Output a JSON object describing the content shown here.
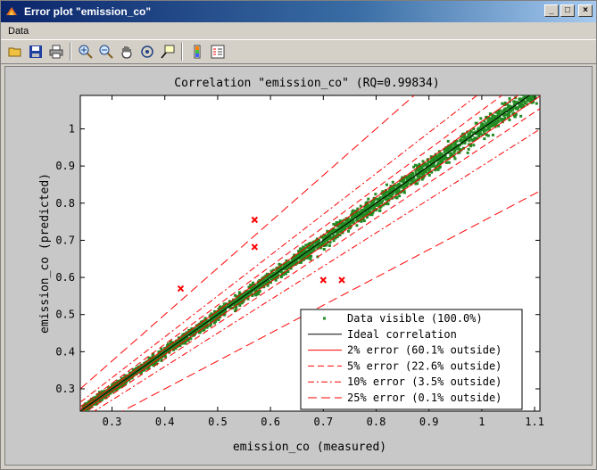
{
  "window": {
    "title": "Error plot \"emission_co\"",
    "buttons": {
      "minimize": "_",
      "maximize": "□",
      "close": "×"
    }
  },
  "menu": {
    "items": [
      "Data"
    ]
  },
  "toolbar": {
    "buttons": [
      "open-icon",
      "save-icon",
      "print-icon",
      "zoom-in-icon",
      "zoom-out-icon",
      "pan-icon",
      "rotate-icon",
      "data-cursor-icon",
      "colorbar-icon",
      "legend-icon"
    ]
  },
  "chart_data": {
    "type": "scatter",
    "title": "Correlation \"emission_co\" (RQ=0.99834)",
    "xlabel": "emission_co (measured)",
    "ylabel": "emission_co (predicted)",
    "xlim": [
      0.24,
      1.11
    ],
    "ylim": [
      0.24,
      1.09
    ],
    "x_ticks": [
      "0.3",
      "0.4",
      "0.5",
      "0.6",
      "0.7",
      "0.8",
      "0.9",
      "1",
      "1.1"
    ],
    "y_ticks": [
      "0.3",
      "0.4",
      "0.5",
      "0.6",
      "0.7",
      "0.8",
      "0.9",
      "1"
    ],
    "grid": false,
    "legend_position": "bottom-right",
    "series": [
      {
        "name": "Data visible (100.0%)",
        "color": "#228b22",
        "marker": "dot",
        "points_note": "dense cluster along y=x"
      },
      {
        "name": "Ideal correlation",
        "color": "#000000",
        "style": "solid",
        "slope": 1.0
      },
      {
        "name": "2% error (60.1% outside)",
        "color": "#ff0000",
        "style": "solid",
        "factors": [
          0.98,
          1.02
        ]
      },
      {
        "name": "5% error (22.6% outside)",
        "color": "#ff0000",
        "style": "dashed",
        "factors": [
          0.95,
          1.05
        ]
      },
      {
        "name": "10% error (3.5% outside)",
        "color": "#ff0000",
        "style": "dashdot",
        "factors": [
          0.9,
          1.1
        ]
      },
      {
        "name": "25% error (0.1% outside)",
        "color": "#ff0000",
        "style": "longdash",
        "factors": [
          0.75,
          1.25
        ]
      }
    ],
    "outliers": [
      {
        "x": 0.43,
        "y": 0.57
      },
      {
        "x": 0.57,
        "y": 0.755
      },
      {
        "x": 0.57,
        "y": 0.682
      },
      {
        "x": 0.7,
        "y": 0.593
      },
      {
        "x": 0.735,
        "y": 0.593
      }
    ],
    "outlier_color": "#ff0000"
  }
}
